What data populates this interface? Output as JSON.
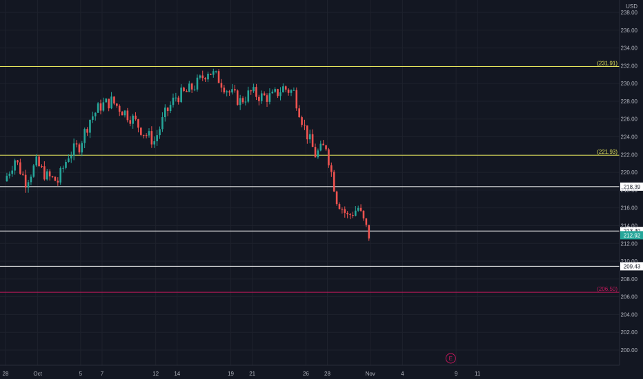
{
  "currency": "USD",
  "colors": {
    "background": "#131722",
    "up": "#26a69a",
    "down": "#ef5350",
    "axis_text": "#b2b5be",
    "resistance_yellow": "#e6e65c",
    "support_white": "#ffffff",
    "target_red": "#c2185b"
  },
  "chart_data": {
    "type": "candlestick",
    "ylim": [
      199,
      239
    ],
    "y_ticks": [
      "238.00",
      "236.00",
      "234.00",
      "232.00",
      "230.00",
      "228.00",
      "226.00",
      "224.00",
      "222.00",
      "220.00",
      "218.00",
      "216.00",
      "214.00",
      "212.00",
      "210.00",
      "208.00",
      "206.00",
      "204.00",
      "202.00",
      "200.00"
    ],
    "x_ticks": [
      {
        "label": "28",
        "day": 0
      },
      {
        "label": "Oct",
        "day": 3
      },
      {
        "label": "5",
        "day": 7
      },
      {
        "label": "7",
        "day": 9
      },
      {
        "label": "12",
        "day": 14
      },
      {
        "label": "14",
        "day": 16
      },
      {
        "label": "19",
        "day": 21
      },
      {
        "label": "21",
        "day": 23
      },
      {
        "label": "26",
        "day": 28
      },
      {
        "label": "28",
        "day": 30
      },
      {
        "label": "Nov",
        "day": 34
      },
      {
        "label": "4",
        "day": 37
      },
      {
        "label": "9",
        "day": 42
      },
      {
        "label": "11",
        "day": 44
      }
    ],
    "levels": [
      {
        "value": 231.91,
        "label": "(231.91)",
        "style": "yellow"
      },
      {
        "value": 221.93,
        "label": "(221.93)",
        "style": "yellow"
      },
      {
        "value": 218.39,
        "label": "218.39",
        "style": "white"
      },
      {
        "value": 213.4,
        "label": "213.40",
        "style": "white"
      },
      {
        "value": 209.43,
        "label": "209.43",
        "style": "white"
      },
      {
        "value": 206.5,
        "label": "(206.50)",
        "style": "red"
      }
    ],
    "last_price": {
      "value": 212.92,
      "label": "212.92"
    },
    "earnings_marker": {
      "label": "E",
      "day": 41.5
    },
    "daily_closes": [
      {
        "day": 0,
        "close": 219.0
      },
      {
        "day": 1,
        "close": 221.5
      },
      {
        "day": 2,
        "close": 219.0
      },
      {
        "day": 3,
        "close": 221.0
      },
      {
        "day": 4,
        "close": 219.5
      },
      {
        "day": 5,
        "close": 219.0
      },
      {
        "day": 6,
        "close": 222.0
      },
      {
        "day": 7,
        "close": 223.0
      },
      {
        "day": 8,
        "close": 226.0
      },
      {
        "day": 9,
        "close": 227.5
      },
      {
        "day": 10,
        "close": 228.0
      },
      {
        "day": 11,
        "close": 227.0
      },
      {
        "day": 12,
        "close": 226.0
      },
      {
        "day": 13,
        "close": 224.5
      },
      {
        "day": 14,
        "close": 223.5
      },
      {
        "day": 15,
        "close": 226.5
      },
      {
        "day": 16,
        "close": 228.5
      },
      {
        "day": 17,
        "close": 229.0
      },
      {
        "day": 18,
        "close": 230.0
      },
      {
        "day": 19,
        "close": 231.5
      },
      {
        "day": 20,
        "close": 230.5
      },
      {
        "day": 21,
        "close": 229.0
      },
      {
        "day": 22,
        "close": 228.0
      },
      {
        "day": 23,
        "close": 229.0
      },
      {
        "day": 24,
        "close": 228.5
      },
      {
        "day": 25,
        "close": 228.5
      },
      {
        "day": 26,
        "close": 229.5
      },
      {
        "day": 27,
        "close": 229.0
      },
      {
        "day": 28,
        "close": 225.0
      },
      {
        "day": 29,
        "close": 222.0
      },
      {
        "day": 30,
        "close": 223.0
      },
      {
        "day": 31,
        "close": 217.0
      },
      {
        "day": 32,
        "close": 215.0
      },
      {
        "day": 33,
        "close": 216.0
      },
      {
        "day": 34,
        "close": 212.9
      }
    ]
  }
}
